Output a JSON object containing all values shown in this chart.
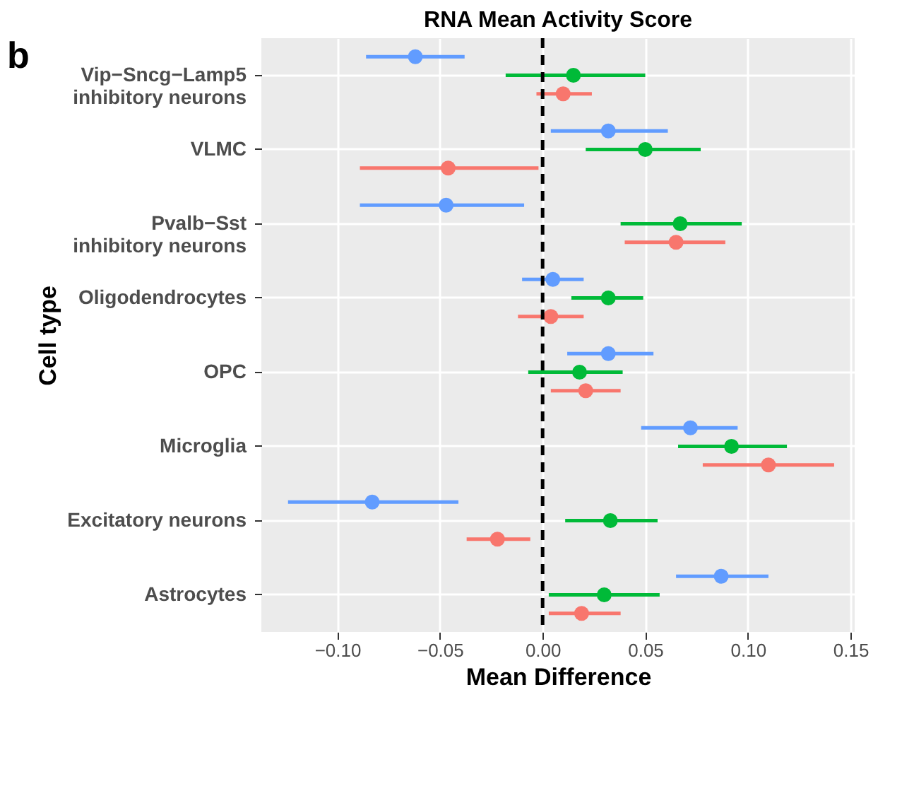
{
  "chart_data": {
    "type": "scatter",
    "orientation": "horizontal",
    "title": "RNA Mean Activity Score",
    "xlabel": "Mean Difference",
    "ylabel": "Cell type",
    "annotations": [
      "b"
    ],
    "categories": [
      "Vip−Sncg−Lamp5\ninhibitory neurons",
      "VLMC",
      "Pvalb−Sst\ninhibitory neurons",
      "Oligodendrocytes",
      "OPC",
      "Microglia",
      "Excitatory neurons",
      "Astrocytes"
    ],
    "series": [
      {
        "color": "#619cff",
        "values": [
          -0.062,
          0.032,
          -0.047,
          0.005,
          0.032,
          0.072,
          -0.083,
          0.087
        ],
        "errors": [
          [
            -0.086,
            -0.038
          ],
          [
            0.004,
            0.061
          ],
          [
            -0.089,
            -0.009
          ],
          [
            -0.01,
            0.02
          ],
          [
            0.012,
            0.054
          ],
          [
            0.048,
            0.095
          ],
          [
            -0.124,
            -0.041
          ],
          [
            0.065,
            0.11
          ]
        ]
      },
      {
        "color": "#00ba38",
        "values": [
          0.015,
          0.05,
          0.067,
          0.032,
          0.018,
          0.092,
          0.033,
          0.03
        ],
        "errors": [
          [
            -0.018,
            0.05
          ],
          [
            0.021,
            0.077
          ],
          [
            0.038,
            0.097
          ],
          [
            0.014,
            0.049
          ],
          [
            -0.007,
            0.039
          ],
          [
            0.066,
            0.119
          ],
          [
            0.011,
            0.056
          ],
          [
            0.003,
            0.057
          ]
        ]
      },
      {
        "color": "#f8766d",
        "values": [
          0.01,
          -0.046,
          0.065,
          0.004,
          0.021,
          0.11,
          -0.022,
          0.019
        ],
        "errors": [
          [
            -0.003,
            0.024
          ],
          [
            -0.089,
            -0.002
          ],
          [
            0.04,
            0.089
          ],
          [
            -0.012,
            0.02
          ],
          [
            0.004,
            0.038
          ],
          [
            0.078,
            0.142
          ],
          [
            -0.037,
            -0.006
          ],
          [
            0.003,
            0.038
          ]
        ]
      }
    ],
    "xlim": [
      -0.137,
      0.152
    ],
    "xticks": [
      {
        "value": -0.1,
        "label": "−0.10"
      },
      {
        "value": -0.05,
        "label": "−0.05"
      },
      {
        "value": 0,
        "label": "0.00"
      },
      {
        "value": 0.05,
        "label": "0.05"
      },
      {
        "value": 0.1,
        "label": "0.10"
      },
      {
        "value": 0.15,
        "label": "0.15"
      }
    ],
    "ref_lines": [
      {
        "axis": "x",
        "value": 0,
        "color": "#000000",
        "line_style": "dashed"
      }
    ],
    "grid": true,
    "legend": false,
    "marker": "circle"
  }
}
